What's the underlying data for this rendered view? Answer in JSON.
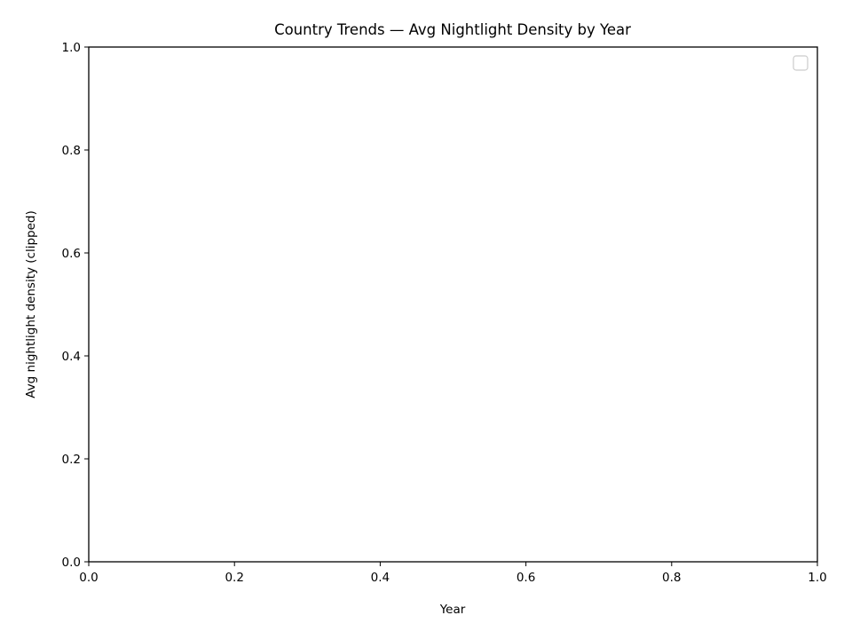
{
  "chart_data": {
    "type": "line",
    "title": "Country Trends — Avg Nightlight Density by Year",
    "xlabel": "Year",
    "ylabel": "Avg nightlight density (clipped)",
    "xlim": [
      0.0,
      1.0
    ],
    "ylim": [
      0.0,
      1.0
    ],
    "x_ticks": [
      "0.0",
      "0.2",
      "0.4",
      "0.6",
      "0.8",
      "1.0"
    ],
    "y_ticks": [
      "0.0",
      "0.2",
      "0.4",
      "0.6",
      "0.8",
      "1.0"
    ],
    "series": [],
    "grid": false,
    "legend": {
      "placement": "top-right",
      "entries": []
    }
  }
}
